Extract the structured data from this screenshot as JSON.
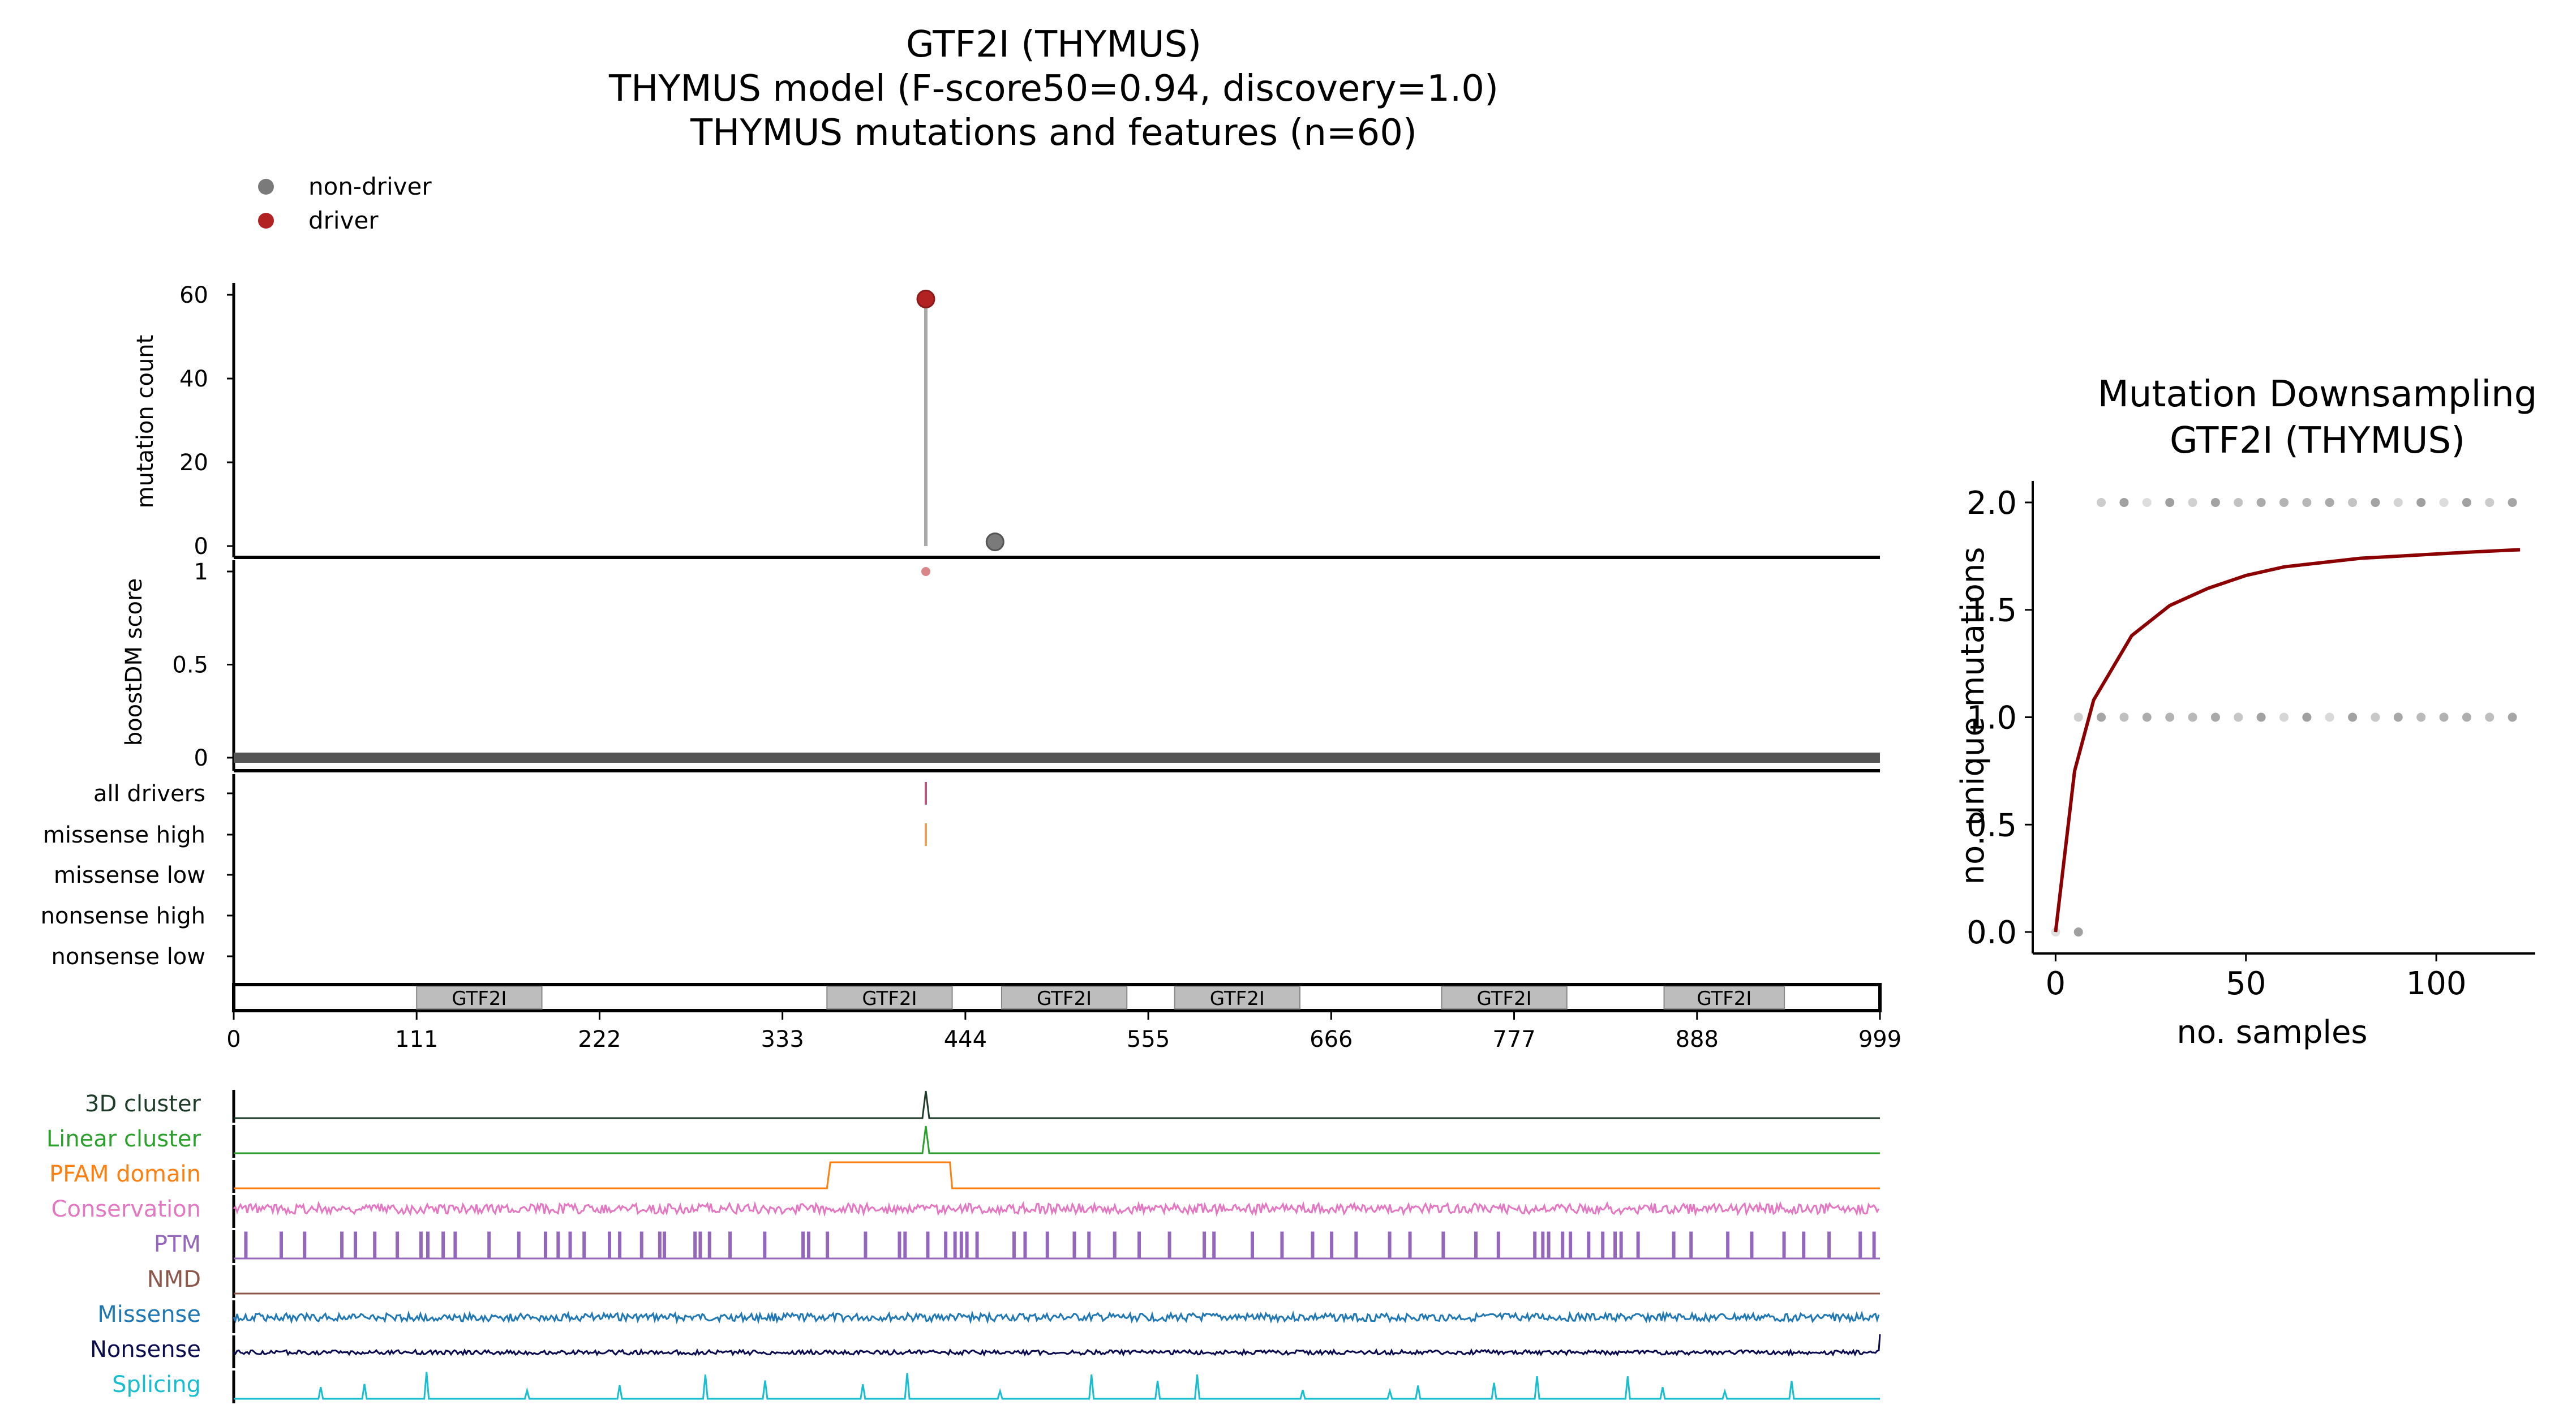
{
  "main": {
    "title_lines": [
      "GTF2I (THYMUS)",
      "THYMUS model (F-score50=0.94, discovery=1.0)",
      "THYMUS mutations and features (n=60)"
    ],
    "legend": [
      {
        "label": "non-driver",
        "color": "#7a7a7a"
      },
      {
        "label": "driver",
        "color": "#b22222"
      }
    ],
    "needle": {
      "ylabel": "mutation count",
      "ylim": [
        0,
        62
      ],
      "yticks": [
        0,
        20,
        40,
        60
      ],
      "points": [
        {
          "x": 420,
          "y": 59,
          "type": "driver"
        },
        {
          "x": 462,
          "y": 1,
          "type": "non-driver"
        }
      ]
    },
    "boost": {
      "ylabel": "boostDM score",
      "ylim": [
        -0.03,
        1.03
      ],
      "yticks": [
        "0",
        "0.5",
        "1"
      ],
      "ytick_values": [
        0,
        0.5,
        1
      ],
      "baseline_color": "#555555",
      "driver_points": [
        {
          "x": 420,
          "y": 1.0
        }
      ]
    },
    "categories": {
      "labels": [
        "all drivers",
        "missense high",
        "missense low",
        "nonsense high",
        "nonsense low"
      ],
      "marks": [
        {
          "row": 0,
          "x": 420,
          "color": "#b5587f"
        },
        {
          "row": 1,
          "x": 420,
          "color": "#e6a15a"
        }
      ]
    },
    "domains": {
      "labels": [
        "GTF2I",
        "GTF2I",
        "GTF2I",
        "GTF2I",
        "GTF2I",
        "GTF2I"
      ],
      "ranges": [
        [
          111,
          187
        ],
        [
          360,
          436
        ],
        [
          466,
          542
        ],
        [
          571,
          647
        ],
        [
          733,
          809
        ],
        [
          868,
          941
        ]
      ]
    },
    "xaxis": {
      "ticks": [
        "0",
        "111",
        "222",
        "333",
        "444",
        "555",
        "666",
        "777",
        "888",
        "999"
      ],
      "tick_values": [
        0,
        111,
        222,
        333,
        444,
        555,
        666,
        777,
        888,
        999
      ],
      "xlim": [
        0,
        999
      ]
    },
    "tracks": [
      {
        "label": "3D cluster",
        "color": "#1f3b2a"
      },
      {
        "label": "Linear cluster",
        "color": "#2ca02c"
      },
      {
        "label": "PFAM domain",
        "color": "#ff7f0e"
      },
      {
        "label": "Conservation",
        "color": "#e377c2"
      },
      {
        "label": "PTM",
        "color": "#9467bd"
      },
      {
        "label": "NMD",
        "color": "#8c564b"
      },
      {
        "label": "Missense",
        "color": "#1f77b4"
      },
      {
        "label": "Nonsense",
        "color": "#0b0b4f"
      },
      {
        "label": "Splicing",
        "color": "#17becf"
      }
    ]
  },
  "chart_data": [
    {
      "type": "scatter",
      "title": "GTF2I (THYMUS) / THYMUS model (F-score50=0.94, discovery=1.0) / THYMUS mutations and features (n=60)",
      "xlabel": "",
      "ylabel": "mutation count",
      "xlim": [
        0,
        999
      ],
      "ylim": [
        0,
        62
      ],
      "series": [
        {
          "name": "driver",
          "x": [
            420
          ],
          "y": [
            59
          ]
        },
        {
          "name": "non-driver",
          "x": [
            462
          ],
          "y": [
            1
          ]
        }
      ],
      "grid": false,
      "legend": "top-left"
    },
    {
      "type": "scatter",
      "title": "Mutation Downsampling GTF2I (THYMUS)",
      "xlabel": "no. samples",
      "ylabel": "no. unique mutations",
      "xlim": [
        -6,
        126
      ],
      "ylim": [
        -0.1,
        2.1
      ],
      "xticks": [
        "0",
        "50",
        "100"
      ],
      "xtick_values": [
        0,
        50,
        100
      ],
      "yticks": [
        "0.0",
        "0.5",
        "1.0",
        "1.5",
        "2.0"
      ],
      "ytick_values": [
        0,
        0.5,
        1,
        1.5,
        2
      ],
      "series": [
        {
          "x": [
            0,
            6,
            6,
            12,
            18,
            24,
            30,
            36,
            42,
            48,
            54,
            60,
            66,
            72,
            78,
            84,
            90,
            96,
            102,
            108,
            114,
            120,
            12,
            18,
            24,
            30,
            36,
            42,
            48,
            54,
            60,
            66,
            72,
            78,
            84,
            90,
            96,
            102,
            108,
            114,
            120
          ],
          "y": [
            0,
            0,
            1,
            1,
            1,
            1,
            1,
            1,
            1,
            1,
            1,
            1,
            1,
            1,
            1,
            1,
            1,
            1,
            1,
            1,
            1,
            1,
            2,
            2,
            2,
            2,
            2,
            2,
            2,
            2,
            2,
            2,
            2,
            2,
            2,
            2,
            2,
            2,
            2,
            2,
            2
          ]
        },
        {
          "type": "line",
          "color": "#8b0000",
          "x": [
            0,
            5,
            10,
            20,
            30,
            40,
            50,
            60,
            70,
            80,
            90,
            100,
            110,
            122
          ],
          "y": [
            0,
            0.75,
            1.08,
            1.38,
            1.52,
            1.6,
            1.66,
            1.7,
            1.72,
            1.74,
            1.75,
            1.76,
            1.77,
            1.78
          ]
        }
      ],
      "grid": false
    }
  ],
  "side": {
    "title_lines": [
      "Mutation Downsampling",
      "GTF2I (THYMUS)"
    ],
    "xlabel": "no. samples",
    "ylabel": "no. unique mutations",
    "curve_color": "#8b0000",
    "dot_color": "#808080"
  }
}
